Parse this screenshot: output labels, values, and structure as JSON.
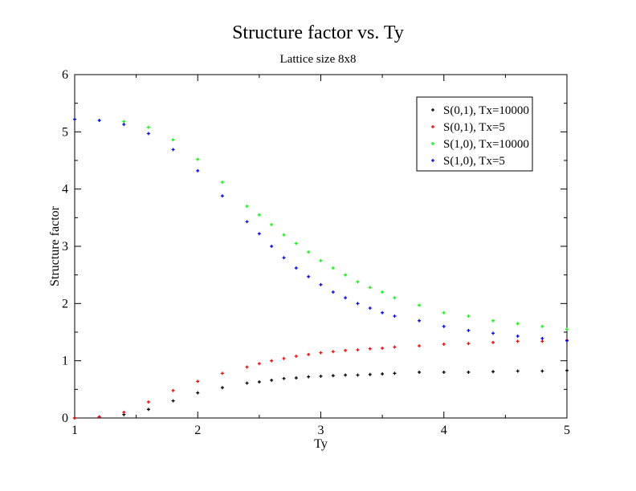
{
  "chart_data": {
    "type": "scatter",
    "title": "Structure factor vs. Ty",
    "subtitle": "Lattice size 8x8",
    "xlabel": "Ty",
    "ylabel": "Structure factor",
    "xlim": [
      1,
      5
    ],
    "ylim": [
      0,
      6
    ],
    "xticks": [
      1,
      2,
      3,
      4,
      5
    ],
    "yticks": [
      0,
      1,
      2,
      3,
      4,
      5,
      6
    ],
    "grid": false,
    "legend_position": "top-right",
    "series": [
      {
        "name": "S(0,1), Tx=10000",
        "color": "#000000",
        "x": [
          1.0,
          1.2,
          1.4,
          1.6,
          1.8,
          2.0,
          2.2,
          2.4,
          2.5,
          2.6,
          2.7,
          2.8,
          2.9,
          3.0,
          3.1,
          3.2,
          3.3,
          3.4,
          3.5,
          3.6,
          3.8,
          4.0,
          4.2,
          4.4,
          4.6,
          4.8,
          5.0
        ],
        "y": [
          0.0,
          0.02,
          0.06,
          0.15,
          0.3,
          0.44,
          0.53,
          0.61,
          0.63,
          0.66,
          0.69,
          0.7,
          0.72,
          0.73,
          0.74,
          0.75,
          0.75,
          0.76,
          0.77,
          0.78,
          0.8,
          0.8,
          0.8,
          0.81,
          0.82,
          0.82,
          0.83
        ]
      },
      {
        "name": "S(0,1), Tx=5",
        "color": "#ff0000",
        "x": [
          1.0,
          1.2,
          1.4,
          1.6,
          1.8,
          2.0,
          2.2,
          2.4,
          2.5,
          2.6,
          2.7,
          2.8,
          2.9,
          3.0,
          3.1,
          3.2,
          3.3,
          3.4,
          3.5,
          3.6,
          3.8,
          4.0,
          4.2,
          4.4,
          4.6,
          4.8,
          5.0
        ],
        "y": [
          0.0,
          0.02,
          0.1,
          0.28,
          0.48,
          0.64,
          0.78,
          0.89,
          0.95,
          1.0,
          1.04,
          1.08,
          1.11,
          1.14,
          1.16,
          1.18,
          1.19,
          1.21,
          1.22,
          1.24,
          1.26,
          1.29,
          1.3,
          1.32,
          1.34,
          1.34,
          1.36
        ]
      },
      {
        "name": "S(1,0), Tx=10000",
        "color": "#00ff00",
        "x": [
          1.0,
          1.2,
          1.4,
          1.6,
          1.8,
          2.0,
          2.2,
          2.4,
          2.5,
          2.6,
          2.7,
          2.8,
          2.9,
          3.0,
          3.1,
          3.2,
          3.3,
          3.4,
          3.5,
          3.6,
          3.8,
          4.0,
          4.2,
          4.4,
          4.6,
          4.8,
          5.0
        ],
        "y": [
          5.22,
          5.2,
          5.18,
          5.08,
          4.86,
          4.52,
          4.12,
          3.7,
          3.55,
          3.38,
          3.2,
          3.05,
          2.9,
          2.75,
          2.62,
          2.5,
          2.38,
          2.28,
          2.2,
          2.1,
          1.97,
          1.84,
          1.78,
          1.7,
          1.65,
          1.6,
          1.55
        ]
      },
      {
        "name": "S(1,0), Tx=5",
        "color": "#0000ff",
        "x": [
          1.0,
          1.2,
          1.4,
          1.6,
          1.8,
          2.0,
          2.2,
          2.4,
          2.5,
          2.6,
          2.7,
          2.8,
          2.9,
          3.0,
          3.1,
          3.2,
          3.3,
          3.4,
          3.5,
          3.6,
          3.8,
          4.0,
          4.2,
          4.4,
          4.6,
          4.8,
          5.0
        ],
        "y": [
          5.22,
          5.2,
          5.13,
          4.97,
          4.69,
          4.32,
          3.88,
          3.43,
          3.22,
          3.0,
          2.8,
          2.62,
          2.47,
          2.33,
          2.2,
          2.1,
          2.0,
          1.92,
          1.84,
          1.78,
          1.7,
          1.6,
          1.53,
          1.48,
          1.43,
          1.39,
          1.35
        ]
      }
    ]
  }
}
